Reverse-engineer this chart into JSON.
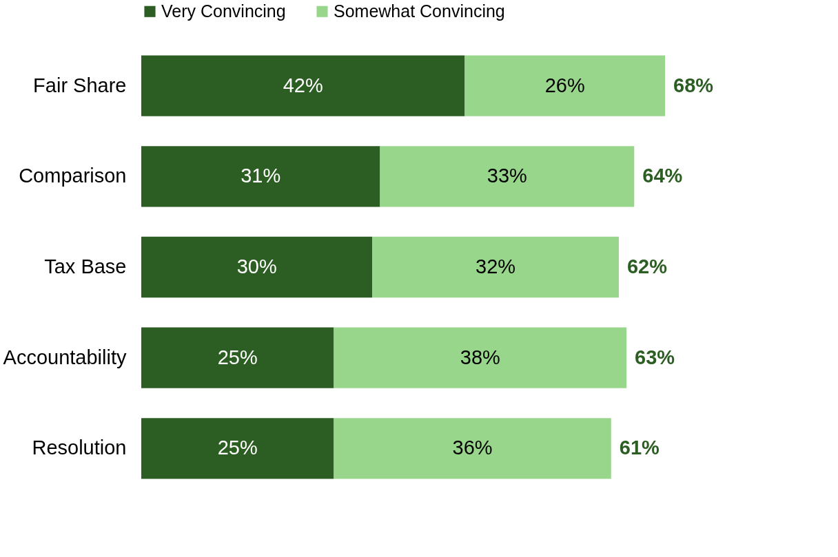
{
  "chart_data": {
    "type": "bar",
    "orientation": "horizontal",
    "stacked": true,
    "categories": [
      "Fair Share",
      "Comparison",
      "Tax Base",
      "Accountability",
      "Resolution"
    ],
    "series": [
      {
        "name": "Very Convincing",
        "color": "#2c5e23",
        "values": [
          42,
          31,
          30,
          25,
          25
        ],
        "value_labels": [
          "42%",
          "31%",
          "30%",
          "25%",
          "25%"
        ]
      },
      {
        "name": "Somewhat Convincing",
        "color": "#98d68b",
        "values": [
          26,
          33,
          32,
          38,
          36
        ],
        "value_labels": [
          "26%",
          "33%",
          "32%",
          "38%",
          "36%"
        ]
      }
    ],
    "totals": [
      "68%",
      "64%",
      "62%",
      "63%",
      "61%"
    ],
    "legend": "top",
    "grid": false
  }
}
